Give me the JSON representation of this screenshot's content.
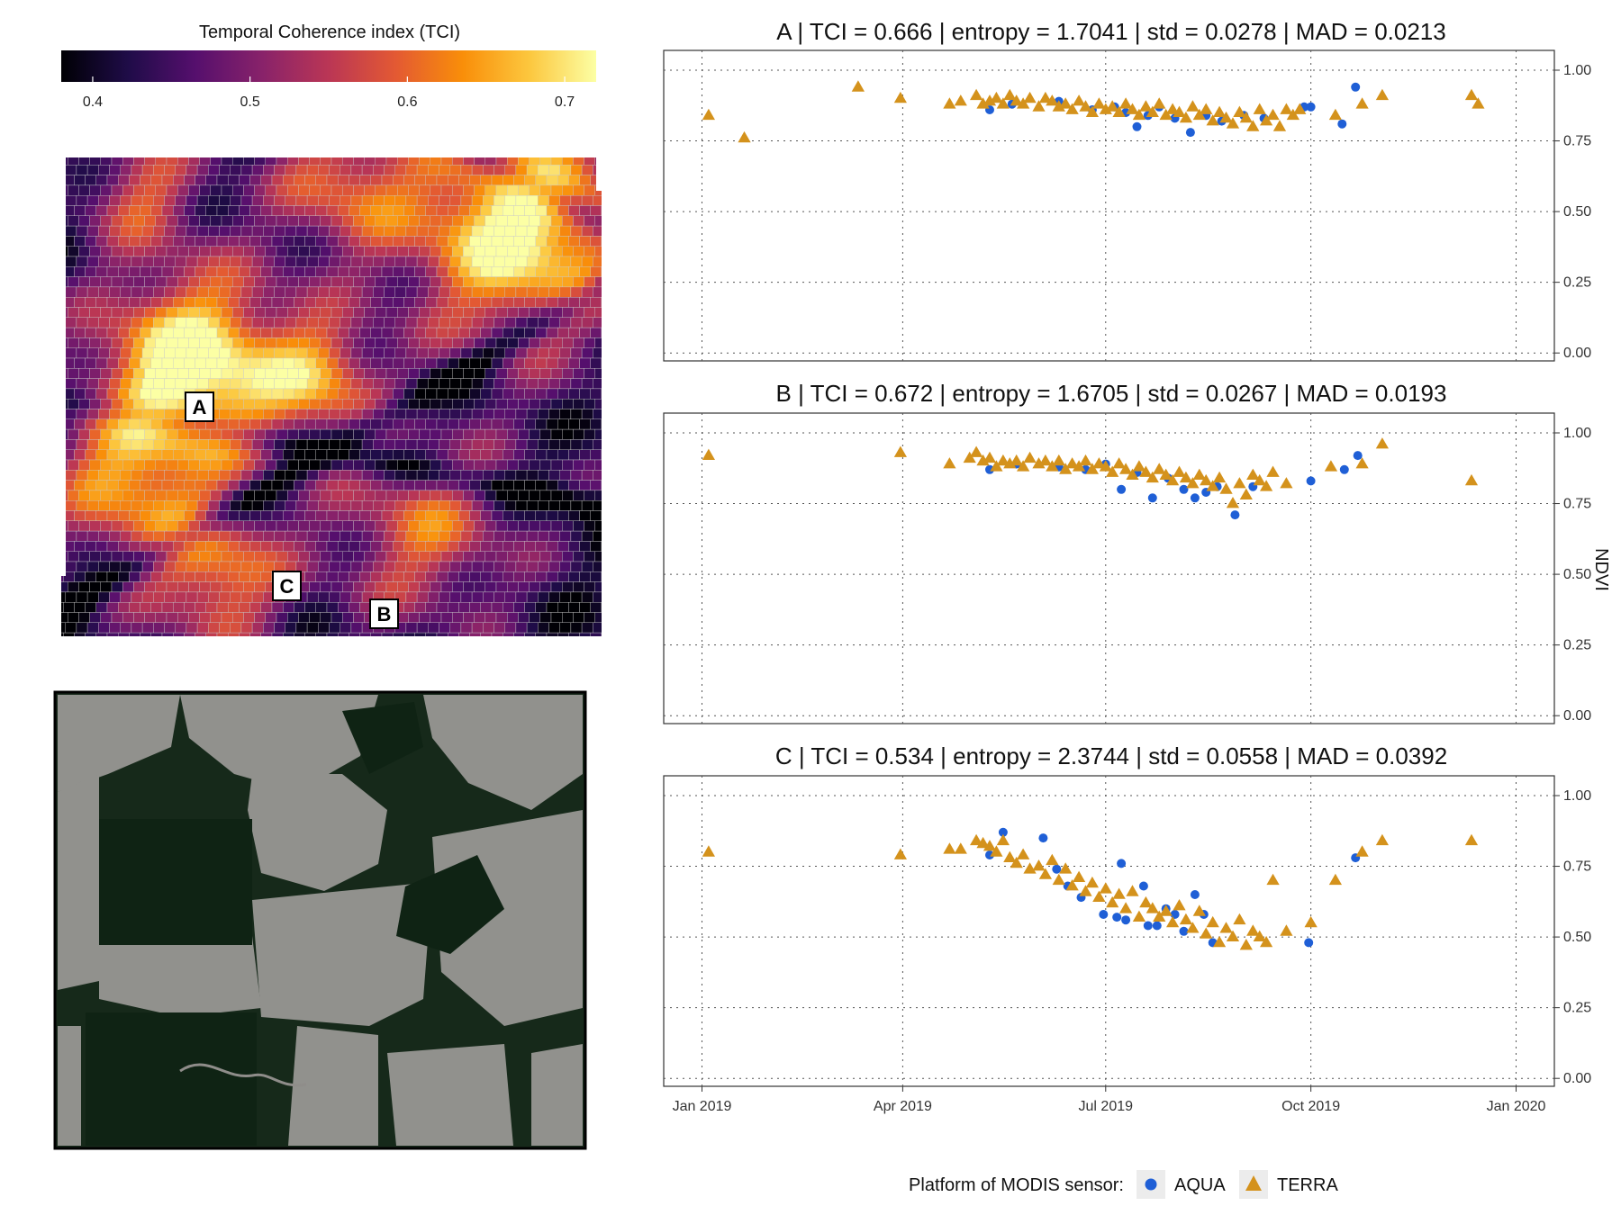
{
  "colorbar": {
    "title": "Temporal Coherence index (TCI)",
    "ticks": [
      "0.4",
      "0.5",
      "0.6",
      "0.7"
    ],
    "tick_values": [
      0.4,
      0.5,
      0.6,
      0.7
    ],
    "range": [
      0.38,
      0.72
    ],
    "palette": [
      "#000004",
      "#1f0c48",
      "#550f6d",
      "#88226a",
      "#ba3655",
      "#e35933",
      "#f98e09",
      "#fcc73e",
      "#fcffa4"
    ]
  },
  "map": {
    "site_labels": [
      "A",
      "B",
      "C"
    ],
    "image_description": "satellite-image"
  },
  "chart_data": [
    {
      "type": "scatter",
      "title": "A | TCI = 0.666 | entropy = 1.7041 | std = 0.0278 | MAD = 0.0213",
      "xlabel": "",
      "ylabel": "NDVI",
      "xlim": [
        "2019-01-01",
        "2020-01-01"
      ],
      "ylim": [
        0,
        1
      ],
      "yticks": [
        "0.00",
        "0.25",
        "0.50",
        "0.75",
        "1.00"
      ],
      "series": [
        {
          "name": "AQUA",
          "color": "#1f5fd6",
          "marker": "circle",
          "x": [
            "2019-05-10",
            "2019-05-20",
            "2019-06-10",
            "2019-06-25",
            "2019-07-05",
            "2019-07-10",
            "2019-07-15",
            "2019-07-20",
            "2019-07-25",
            "2019-08-01",
            "2019-08-08",
            "2019-08-15",
            "2019-08-22",
            "2019-09-01",
            "2019-09-10",
            "2019-09-28",
            "2019-10-01",
            "2019-10-15",
            "2019-10-21"
          ],
          "y": [
            0.86,
            0.88,
            0.89,
            0.86,
            0.87,
            0.85,
            0.8,
            0.84,
            0.87,
            0.83,
            0.78,
            0.84,
            0.82,
            0.84,
            0.83,
            0.87,
            0.87,
            0.81,
            0.94
          ]
        },
        {
          "name": "TERRA",
          "color": "#d4921c",
          "marker": "triangle",
          "x": [
            "2019-01-04",
            "2019-01-20",
            "2019-03-12",
            "2019-03-31",
            "2019-04-22",
            "2019-04-27",
            "2019-05-04",
            "2019-05-07",
            "2019-05-10",
            "2019-05-13",
            "2019-05-16",
            "2019-05-19",
            "2019-05-22",
            "2019-05-25",
            "2019-05-28",
            "2019-06-01",
            "2019-06-04",
            "2019-06-07",
            "2019-06-10",
            "2019-06-13",
            "2019-06-16",
            "2019-06-19",
            "2019-06-22",
            "2019-06-25",
            "2019-06-28",
            "2019-07-01",
            "2019-07-04",
            "2019-07-07",
            "2019-07-10",
            "2019-07-13",
            "2019-07-16",
            "2019-07-19",
            "2019-07-22",
            "2019-07-25",
            "2019-07-28",
            "2019-07-31",
            "2019-08-03",
            "2019-08-06",
            "2019-08-09",
            "2019-08-12",
            "2019-08-15",
            "2019-08-18",
            "2019-08-21",
            "2019-08-24",
            "2019-08-27",
            "2019-08-30",
            "2019-09-02",
            "2019-09-05",
            "2019-09-08",
            "2019-09-11",
            "2019-09-14",
            "2019-09-17",
            "2019-09-20",
            "2019-09-23",
            "2019-09-26",
            "2019-10-12",
            "2019-10-24",
            "2019-11-02",
            "2019-12-12",
            "2019-12-15"
          ],
          "y": [
            0.84,
            0.76,
            0.94,
            0.9,
            0.88,
            0.89,
            0.91,
            0.88,
            0.89,
            0.9,
            0.88,
            0.91,
            0.89,
            0.88,
            0.9,
            0.87,
            0.9,
            0.89,
            0.87,
            0.88,
            0.86,
            0.89,
            0.87,
            0.85,
            0.88,
            0.86,
            0.87,
            0.85,
            0.88,
            0.86,
            0.84,
            0.87,
            0.85,
            0.88,
            0.84,
            0.86,
            0.85,
            0.83,
            0.87,
            0.84,
            0.86,
            0.82,
            0.85,
            0.83,
            0.81,
            0.85,
            0.83,
            0.8,
            0.86,
            0.82,
            0.84,
            0.8,
            0.86,
            0.84,
            0.86,
            0.84,
            0.88,
            0.91,
            0.91,
            0.88
          ]
        }
      ]
    },
    {
      "type": "scatter",
      "title": "B | TCI = 0.672 | entropy = 1.6705 | std = 0.0267 | MAD = 0.0193",
      "xlabel": "",
      "ylabel": "NDVI",
      "xlim": [
        "2019-01-01",
        "2020-01-01"
      ],
      "ylim": [
        0,
        1
      ],
      "yticks": [
        "0.00",
        "0.25",
        "0.50",
        "0.75",
        "1.00"
      ],
      "series": [
        {
          "name": "AQUA",
          "color": "#1f5fd6",
          "marker": "circle",
          "x": [
            "2019-05-10",
            "2019-05-22",
            "2019-06-10",
            "2019-06-22",
            "2019-07-01",
            "2019-07-08",
            "2019-07-15",
            "2019-07-22",
            "2019-07-29",
            "2019-08-05",
            "2019-08-10",
            "2019-08-15",
            "2019-08-20",
            "2019-08-28",
            "2019-09-05",
            "2019-10-01",
            "2019-10-16",
            "2019-10-22"
          ],
          "y": [
            0.87,
            0.89,
            0.88,
            0.87,
            0.89,
            0.8,
            0.86,
            0.77,
            0.84,
            0.8,
            0.77,
            0.79,
            0.81,
            0.71,
            0.81,
            0.83,
            0.87,
            0.92
          ]
        },
        {
          "name": "TERRA",
          "color": "#d4921c",
          "marker": "triangle",
          "x": [
            "2019-01-04",
            "2019-03-31",
            "2019-04-22",
            "2019-05-01",
            "2019-05-04",
            "2019-05-07",
            "2019-05-10",
            "2019-05-13",
            "2019-05-16",
            "2019-05-19",
            "2019-05-22",
            "2019-05-25",
            "2019-05-28",
            "2019-06-01",
            "2019-06-04",
            "2019-06-07",
            "2019-06-10",
            "2019-06-13",
            "2019-06-16",
            "2019-06-19",
            "2019-06-22",
            "2019-06-25",
            "2019-06-28",
            "2019-07-01",
            "2019-07-04",
            "2019-07-07",
            "2019-07-10",
            "2019-07-13",
            "2019-07-16",
            "2019-07-19",
            "2019-07-22",
            "2019-07-25",
            "2019-07-28",
            "2019-07-31",
            "2019-08-03",
            "2019-08-06",
            "2019-08-09",
            "2019-08-12",
            "2019-08-15",
            "2019-08-18",
            "2019-08-21",
            "2019-08-24",
            "2019-08-27",
            "2019-08-30",
            "2019-09-02",
            "2019-09-05",
            "2019-09-08",
            "2019-09-11",
            "2019-09-14",
            "2019-09-20",
            "2019-10-10",
            "2019-10-24",
            "2019-11-02",
            "2019-12-12"
          ],
          "y": [
            0.92,
            0.93,
            0.89,
            0.91,
            0.93,
            0.9,
            0.91,
            0.88,
            0.9,
            0.89,
            0.9,
            0.88,
            0.91,
            0.89,
            0.9,
            0.88,
            0.9,
            0.87,
            0.89,
            0.88,
            0.9,
            0.87,
            0.89,
            0.88,
            0.86,
            0.89,
            0.87,
            0.85,
            0.88,
            0.86,
            0.84,
            0.87,
            0.85,
            0.83,
            0.86,
            0.84,
            0.82,
            0.85,
            0.83,
            0.81,
            0.84,
            0.8,
            0.75,
            0.82,
            0.78,
            0.85,
            0.83,
            0.81,
            0.86,
            0.82,
            0.88,
            0.89,
            0.96,
            0.83
          ]
        }
      ]
    },
    {
      "type": "scatter",
      "title": "C | TCI = 0.534 | entropy = 2.3744 | std = 0.0558 | MAD = 0.0392",
      "xlabel": "",
      "ylabel": "NDVI",
      "xlim": [
        "2019-01-01",
        "2020-01-01"
      ],
      "ylim": [
        0,
        1
      ],
      "yticks": [
        "0.00",
        "0.25",
        "0.50",
        "0.75",
        "1.00"
      ],
      "xticks": [
        "Jan 2019",
        "Apr 2019",
        "Jul 2019",
        "Oct 2019",
        "Jan 2020"
      ],
      "xtick_values": [
        "2019-01-01",
        "2019-04-01",
        "2019-07-01",
        "2019-10-01",
        "2020-01-01"
      ],
      "series": [
        {
          "name": "AQUA",
          "color": "#1f5fd6",
          "marker": "circle",
          "x": [
            "2019-05-10",
            "2019-05-16",
            "2019-06-03",
            "2019-06-09",
            "2019-06-14",
            "2019-06-20",
            "2019-06-30",
            "2019-07-06",
            "2019-07-08",
            "2019-07-10",
            "2019-07-18",
            "2019-07-20",
            "2019-07-24",
            "2019-07-28",
            "2019-08-01",
            "2019-08-05",
            "2019-08-10",
            "2019-08-14",
            "2019-08-18",
            "2019-09-30",
            "2019-10-21"
          ],
          "y": [
            0.79,
            0.87,
            0.85,
            0.74,
            0.68,
            0.64,
            0.58,
            0.57,
            0.76,
            0.56,
            0.68,
            0.54,
            0.54,
            0.6,
            0.58,
            0.52,
            0.65,
            0.58,
            0.48,
            0.48,
            0.78
          ]
        },
        {
          "name": "TERRA",
          "color": "#d4921c",
          "marker": "triangle",
          "x": [
            "2019-01-04",
            "2019-03-31",
            "2019-04-22",
            "2019-04-27",
            "2019-05-04",
            "2019-05-07",
            "2019-05-10",
            "2019-05-13",
            "2019-05-16",
            "2019-05-19",
            "2019-05-22",
            "2019-05-25",
            "2019-05-28",
            "2019-06-01",
            "2019-06-04",
            "2019-06-07",
            "2019-06-10",
            "2019-06-13",
            "2019-06-16",
            "2019-06-19",
            "2019-06-22",
            "2019-06-25",
            "2019-06-28",
            "2019-07-01",
            "2019-07-04",
            "2019-07-07",
            "2019-07-10",
            "2019-07-13",
            "2019-07-16",
            "2019-07-19",
            "2019-07-22",
            "2019-07-25",
            "2019-07-28",
            "2019-07-31",
            "2019-08-03",
            "2019-08-06",
            "2019-08-09",
            "2019-08-12",
            "2019-08-15",
            "2019-08-18",
            "2019-08-21",
            "2019-08-24",
            "2019-08-27",
            "2019-08-30",
            "2019-09-02",
            "2019-09-05",
            "2019-09-08",
            "2019-09-11",
            "2019-09-14",
            "2019-09-20",
            "2019-10-01",
            "2019-10-12",
            "2019-10-24",
            "2019-11-02",
            "2019-12-12"
          ],
          "y": [
            0.8,
            0.79,
            0.81,
            0.81,
            0.84,
            0.83,
            0.82,
            0.8,
            0.84,
            0.78,
            0.76,
            0.79,
            0.74,
            0.75,
            0.72,
            0.77,
            0.7,
            0.74,
            0.68,
            0.71,
            0.66,
            0.69,
            0.64,
            0.67,
            0.62,
            0.65,
            0.6,
            0.66,
            0.57,
            0.62,
            0.6,
            0.57,
            0.59,
            0.55,
            0.61,
            0.56,
            0.53,
            0.59,
            0.51,
            0.55,
            0.48,
            0.53,
            0.5,
            0.56,
            0.47,
            0.52,
            0.5,
            0.48,
            0.7,
            0.52,
            0.55,
            0.7,
            0.8,
            0.84,
            0.84
          ]
        }
      ]
    }
  ],
  "legend": {
    "title": "Platform of MODIS sensor:",
    "items": [
      {
        "label": "AQUA",
        "color": "#1f5fd6",
        "marker": "circle"
      },
      {
        "label": "TERRA",
        "color": "#d4921c",
        "marker": "triangle"
      }
    ]
  }
}
